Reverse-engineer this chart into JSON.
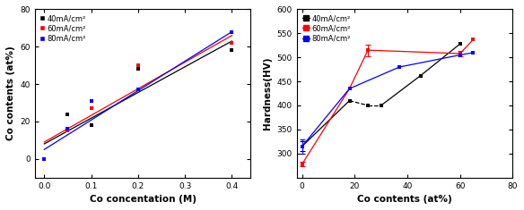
{
  "chart1": {
    "xlabel": "Co concentation (M)",
    "ylabel": "Co contents (at%)",
    "xlim": [
      -0.02,
      0.44
    ],
    "ylim": [
      -10,
      80
    ],
    "xticks": [
      0.0,
      0.1,
      0.2,
      0.3,
      0.4
    ],
    "yticks": [
      0,
      20,
      40,
      60,
      80
    ],
    "series": [
      {
        "label": "40mA/cm²",
        "color": "black",
        "x": [
          0.05,
          0.1,
          0.2,
          0.4
        ],
        "y": [
          24,
          18,
          48,
          58
        ]
      },
      {
        "label": "60mA/cm²",
        "color": "red",
        "x": [
          0.05,
          0.1,
          0.2,
          0.4
        ],
        "y": [
          15,
          27,
          50,
          62
        ]
      },
      {
        "label": "80mA/cm²",
        "color": "blue",
        "x": [
          0.0,
          0.05,
          0.1,
          0.2,
          0.4
        ],
        "y": [
          0,
          16,
          31,
          37,
          68
        ]
      }
    ],
    "fit_lines": [
      {
        "color": "black",
        "x0": 0.0,
        "x1": 0.4,
        "y0": 8,
        "y1": 63
      },
      {
        "color": "red",
        "x0": 0.0,
        "x1": 0.4,
        "y0": 9,
        "y1": 66
      },
      {
        "color": "blue",
        "x0": 0.0,
        "x1": 0.4,
        "y0": 5,
        "y1": 68
      }
    ]
  },
  "chart2": {
    "xlabel": "Co contents (at%)",
    "ylabel": "Hardness(HV)",
    "xlim": [
      -2,
      80
    ],
    "ylim": [
      250,
      600
    ],
    "xticks": [
      0,
      20,
      40,
      60,
      80
    ],
    "yticks": [
      300,
      350,
      400,
      450,
      500,
      550,
      600
    ],
    "series": [
      {
        "label": "40mA/cm²",
        "color": "black",
        "x": [
          0,
          18,
          25,
          30,
          45,
          60
        ],
        "y": [
          315,
          410,
          400,
          400,
          462,
          528
        ],
        "yerr": [
          10,
          0,
          0,
          0,
          0,
          0
        ],
        "linestyle_segments": [
          [
            0,
            1
          ],
          [
            1,
            2
          ],
          [
            2,
            3
          ],
          [
            3,
            4
          ],
          [
            4,
            5
          ]
        ],
        "dashed_segments": [
          [
            1,
            3
          ]
        ]
      },
      {
        "label": "60mA/cm²",
        "color": "red",
        "x": [
          0,
          18,
          25,
          60,
          65
        ],
        "y": [
          278,
          435,
          515,
          508,
          537
        ],
        "yerr": [
          5,
          0,
          12,
          5,
          0
        ],
        "dashed_segments": []
      },
      {
        "label": "80mA/cm²",
        "color": "blue",
        "x": [
          0,
          18,
          37,
          60,
          65
        ],
        "y": [
          315,
          435,
          480,
          505,
          510
        ],
        "yerr": [
          15,
          0,
          0,
          0,
          0
        ],
        "dashed_segments": []
      }
    ]
  }
}
